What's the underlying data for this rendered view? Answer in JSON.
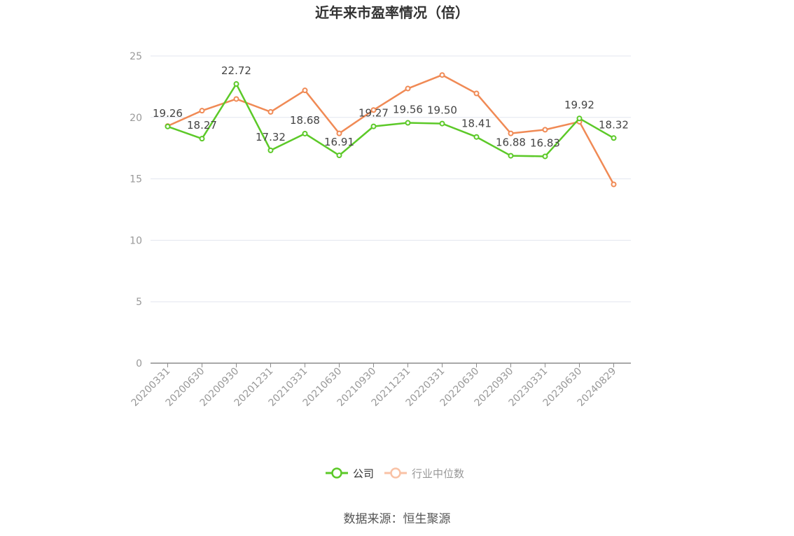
{
  "chart_data": {
    "type": "line",
    "title": "近年来市盈率情况（倍）",
    "categories": [
      "20200331",
      "20200630",
      "20200930",
      "20201231",
      "20210331",
      "20210630",
      "20210930",
      "20211231",
      "20220331",
      "20220630",
      "20220930",
      "20230331",
      "20230630",
      "20240829"
    ],
    "ylim": [
      0,
      25
    ],
    "yticks": [
      0,
      5,
      10,
      15,
      20,
      25
    ],
    "grid": true,
    "legend_position": "bottom",
    "series": [
      {
        "name": "公司",
        "color": "#5cc928",
        "values": [
          19.26,
          18.27,
          22.72,
          17.32,
          18.68,
          16.91,
          19.27,
          19.56,
          19.5,
          18.41,
          16.88,
          16.83,
          19.92,
          18.32
        ],
        "labels": [
          "19.26",
          "18.27",
          "22.72",
          "17.32",
          "18.68",
          "16.91",
          "19.27",
          "19.56",
          "19.50",
          "18.41",
          "16.88",
          "16.83",
          "19.92",
          "18.32"
        ]
      },
      {
        "name": "行业中位数",
        "color": "#f08a55",
        "values": [
          19.3,
          20.55,
          21.5,
          20.45,
          22.2,
          18.7,
          20.6,
          22.35,
          23.45,
          21.95,
          18.7,
          19.0,
          19.65,
          14.55
        ]
      }
    ]
  },
  "source": "数据来源：恒生聚源"
}
